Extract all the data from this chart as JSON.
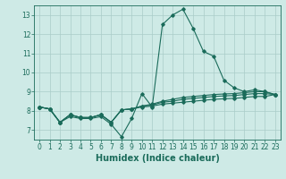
{
  "xlabel": "Humidex (Indice chaleur)",
  "x": [
    0,
    1,
    2,
    3,
    4,
    5,
    6,
    7,
    8,
    9,
    10,
    11,
    12,
    13,
    14,
    15,
    16,
    17,
    18,
    19,
    20,
    21,
    22,
    23
  ],
  "series": [
    [
      8.2,
      8.1,
      7.4,
      7.7,
      7.6,
      7.6,
      7.7,
      7.3,
      6.65,
      7.6,
      8.9,
      8.2,
      12.5,
      13.0,
      13.3,
      12.3,
      11.1,
      10.85,
      9.6,
      9.2,
      9.0,
      9.1,
      9.0,
      8.85
    ],
    [
      8.2,
      8.1,
      7.4,
      7.8,
      7.65,
      7.65,
      7.8,
      7.4,
      8.05,
      8.1,
      8.25,
      8.35,
      8.5,
      8.6,
      8.7,
      8.75,
      8.8,
      8.85,
      8.88,
      8.9,
      8.95,
      9.0,
      9.0,
      8.85
    ],
    [
      8.2,
      8.1,
      7.4,
      7.8,
      7.65,
      7.65,
      7.8,
      7.4,
      8.05,
      8.1,
      8.25,
      8.3,
      8.45,
      8.5,
      8.6,
      8.65,
      8.7,
      8.75,
      8.78,
      8.8,
      8.85,
      8.9,
      8.9,
      8.85
    ],
    [
      8.2,
      8.1,
      7.4,
      7.8,
      7.65,
      7.65,
      7.8,
      7.4,
      8.05,
      8.1,
      8.2,
      8.25,
      8.35,
      8.4,
      8.45,
      8.5,
      8.55,
      8.6,
      8.63,
      8.65,
      8.7,
      8.75,
      8.75,
      8.85
    ]
  ],
  "line_color": "#1a6b5a",
  "bg_color": "#ceeae6",
  "grid_color": "#aaccc8",
  "ylim": [
    6.5,
    13.5
  ],
  "xlim": [
    -0.5,
    23.5
  ],
  "yticks": [
    7,
    8,
    9,
    10,
    11,
    12,
    13
  ],
  "xticks": [
    0,
    1,
    2,
    3,
    4,
    5,
    6,
    7,
    8,
    9,
    10,
    11,
    12,
    13,
    14,
    15,
    16,
    17,
    18,
    19,
    20,
    21,
    22,
    23
  ],
  "tick_fontsize": 5.5,
  "xlabel_fontsize": 7.0
}
